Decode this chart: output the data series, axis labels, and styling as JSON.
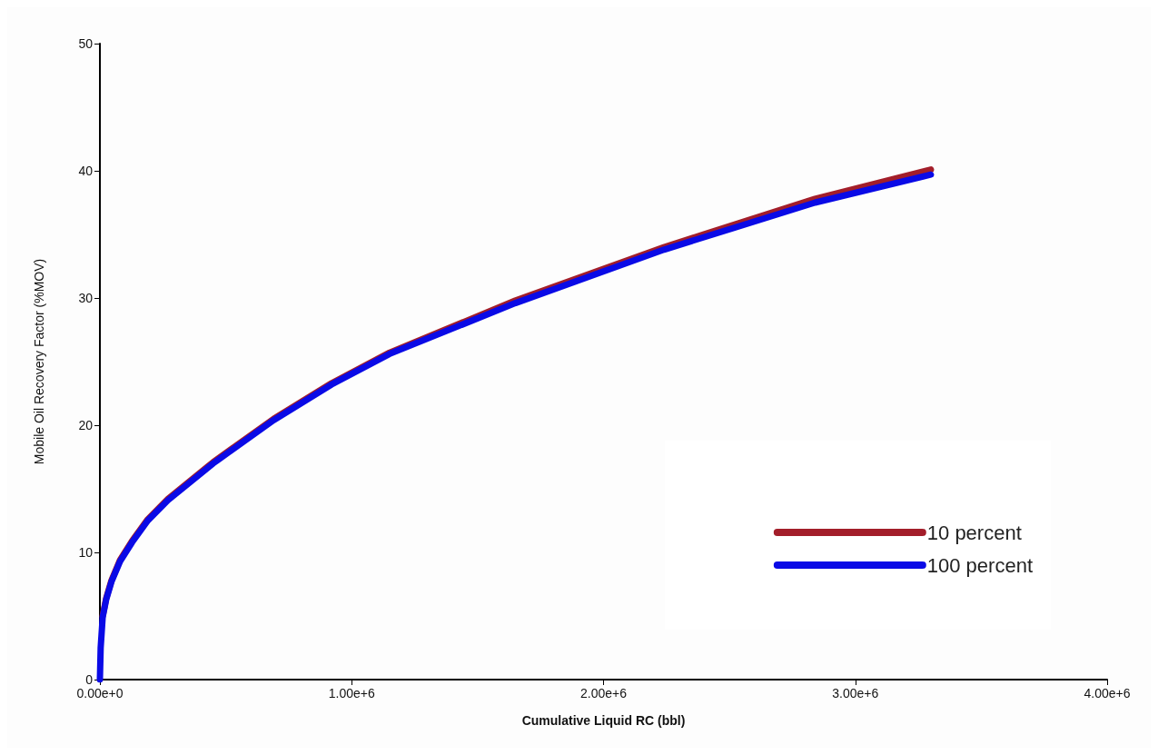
{
  "chart_data": {
    "type": "line",
    "xlabel": "Cumulative Liquid RC (bbl)",
    "ylabel": "Mobile Oil Recovery Factor (%MOV)",
    "x": [
      0,
      3000,
      11000,
      25000,
      46000,
      80000,
      128000,
      190000,
      270000,
      450000,
      690000,
      920000,
      1150000,
      1650000,
      2240000,
      2840000,
      3300000
    ],
    "series": [
      {
        "name": "10 percent",
        "color": "#a31e2a",
        "values": [
          null,
          null,
          5,
          6.4,
          7.8,
          9.4,
          10.9,
          12.6,
          14.2,
          17.1,
          20.5,
          23.3,
          25.7,
          29.8,
          34,
          37.8,
          40.1
        ]
      },
      {
        "name": "100 percent",
        "color": "#0a0ae6",
        "values": [
          0,
          2.5,
          4.9,
          6.3,
          7.7,
          9.3,
          10.8,
          12.5,
          14.1,
          17,
          20.4,
          23.2,
          25.6,
          29.6,
          33.8,
          37.5,
          39.7
        ]
      }
    ],
    "xlim": [
      0,
      4000000
    ],
    "xticks": [
      {
        "value": 0,
        "label": "0.00e+0"
      },
      {
        "value": 1000000,
        "label": "1.00e+6"
      },
      {
        "value": 2000000,
        "label": "2.00e+6"
      },
      {
        "value": 3000000,
        "label": "3.00e+6"
      },
      {
        "value": 4000000,
        "label": "4.00e+6"
      }
    ],
    "ylim": [
      0,
      50
    ],
    "yticks": [
      0,
      10,
      20,
      30,
      40,
      50
    ],
    "grid": false,
    "legend": "bottom right",
    "marker": "none",
    "line_style": "solid"
  }
}
